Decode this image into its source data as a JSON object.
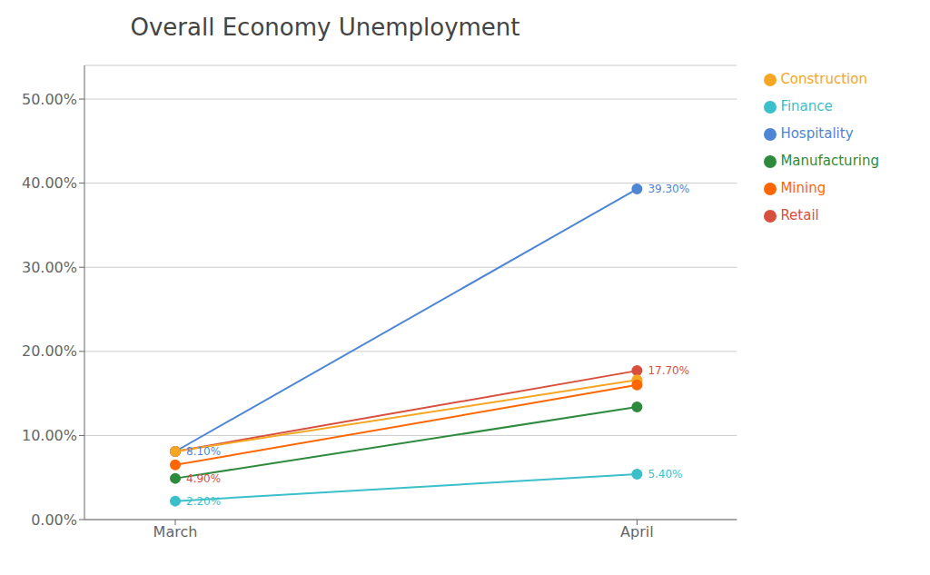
{
  "chart_data": {
    "type": "line",
    "title": "Overall Economy Unemployment",
    "categories": [
      "March",
      "April"
    ],
    "series": [
      {
        "name": "Hospitality",
        "color": "#4E86D4",
        "values": [
          0.081,
          0.393
        ]
      },
      {
        "name": "Retail",
        "color": "#D94F3D",
        "values": [
          0.081,
          0.177
        ]
      },
      {
        "name": "Construction",
        "color": "#F5A623",
        "values": [
          0.081,
          0.166
        ]
      },
      {
        "name": "Manufacturing",
        "color": "#2E8B3E",
        "values": [
          0.049,
          0.134
        ]
      },
      {
        "name": "Mining",
        "color": "#FF6600",
        "values": [
          0.065,
          0.16
        ]
      },
      {
        "name": "Finance",
        "color": "#3BBFCA",
        "values": [
          0.022,
          0.054
        ]
      }
    ],
    "annotations": [
      {
        "text": "8.10%",
        "x": "March",
        "y": 0.081,
        "color": "#4E86D4"
      },
      {
        "text": "4.90%",
        "x": "March",
        "y": 0.049,
        "color": "#D94F3D"
      },
      {
        "text": "2.20%",
        "x": "March",
        "y": 0.022,
        "color": "#3BBFCA"
      },
      {
        "text": "39.30%",
        "x": "April",
        "y": 0.393,
        "color": "#4E86D4"
      },
      {
        "text": "17.70%",
        "x": "April",
        "y": 0.177,
        "color": "#D94F3D"
      },
      {
        "text": "5.40%",
        "x": "April",
        "y": 0.054,
        "color": "#3BBFCA"
      }
    ],
    "ylim": [
      0,
      0.54
    ],
    "yticks": [
      {
        "value": 0.0,
        "label": "0.00%"
      },
      {
        "value": 0.1,
        "label": "10.00%"
      },
      {
        "value": 0.2,
        "label": "20.00%"
      },
      {
        "value": 0.3,
        "label": "30.00%"
      },
      {
        "value": 0.4,
        "label": "40.00%"
      },
      {
        "value": 0.5,
        "label": "50.00%"
      }
    ],
    "grid": true,
    "legend": "right",
    "marker": "circle"
  }
}
